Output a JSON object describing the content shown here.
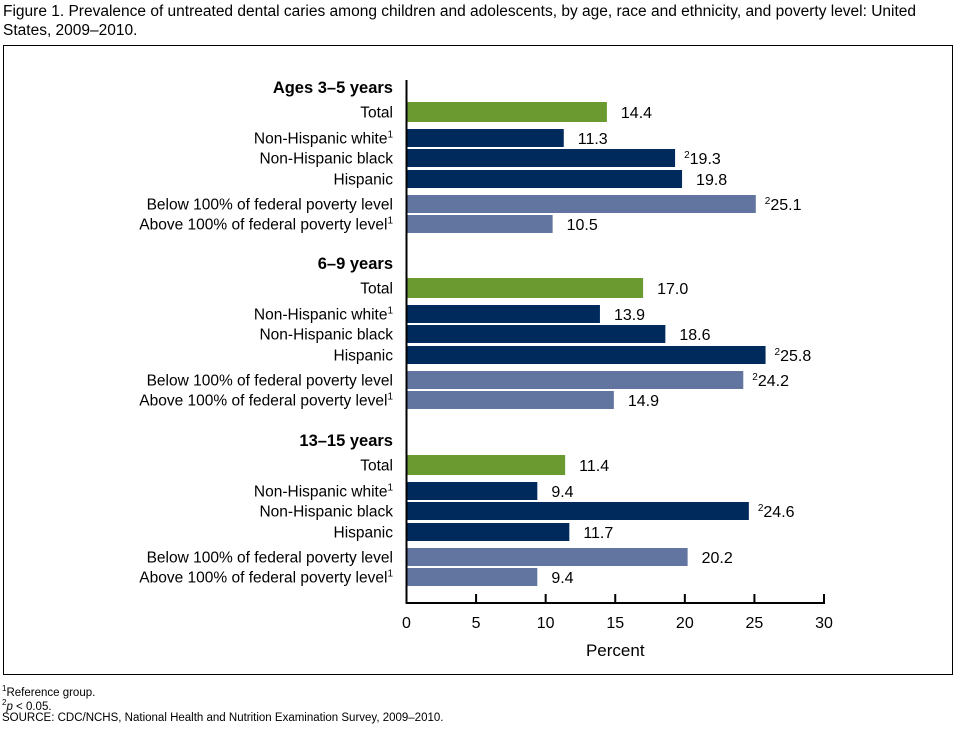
{
  "title": "Figure 1. Prevalence of untreated dental caries among children and adolescents, by age, race and ethnicity, and poverty level: United States, 2009–2010.",
  "colors": {
    "total": "#6a9a30",
    "race": "#012a5c",
    "poverty": "#6275a0"
  },
  "chart_data": {
    "type": "bar",
    "orientation": "horizontal",
    "xlabel": "Percent",
    "xlim": [
      0,
      30
    ],
    "xticks": [
      "0",
      "5",
      "10",
      "15",
      "20",
      "25",
      "30"
    ],
    "grid": false,
    "groups": [
      {
        "label": "Ages 3–5 years",
        "bars": [
          {
            "label": "Total",
            "value": 14.4,
            "value_label": "14.4",
            "kind": "total"
          },
          {
            "label": "Non-Hispanic white",
            "sup": "1",
            "value": 11.3,
            "value_label": "11.3",
            "kind": "race"
          },
          {
            "label": "Non-Hispanic black",
            "value": 19.3,
            "value_label": "19.3",
            "value_sup": "2",
            "kind": "race"
          },
          {
            "label": "Hispanic",
            "value": 19.8,
            "value_label": "19.8",
            "kind": "race"
          },
          {
            "label": "Below 100% of federal poverty level",
            "value": 25.1,
            "value_label": "25.1",
            "value_sup": "2",
            "kind": "poverty"
          },
          {
            "label": "Above 100% of federal poverty level",
            "sup": "1",
            "value": 10.5,
            "value_label": "10.5",
            "kind": "poverty"
          }
        ]
      },
      {
        "label": "6–9 years",
        "bars": [
          {
            "label": "Total",
            "value": 17.0,
            "value_label": "17.0",
            "kind": "total"
          },
          {
            "label": "Non-Hispanic white",
            "sup": "1",
            "value": 13.9,
            "value_label": "13.9",
            "kind": "race"
          },
          {
            "label": "Non-Hispanic black",
            "value": 18.6,
            "value_label": "18.6",
            "kind": "race"
          },
          {
            "label": "Hispanic",
            "value": 25.8,
            "value_label": "25.8",
            "value_sup": "2",
            "kind": "race"
          },
          {
            "label": "Below 100% of federal poverty level",
            "value": 24.2,
            "value_label": "24.2",
            "value_sup": "2",
            "kind": "poverty"
          },
          {
            "label": "Above 100% of federal poverty level",
            "sup": "1",
            "value": 14.9,
            "value_label": "14.9",
            "kind": "poverty"
          }
        ]
      },
      {
        "label": "13–15 years",
        "bars": [
          {
            "label": "Total",
            "value": 11.4,
            "value_label": "11.4",
            "kind": "total"
          },
          {
            "label": "Non-Hispanic white",
            "sup": "1",
            "value": 9.4,
            "value_label": "9.4",
            "kind": "race"
          },
          {
            "label": "Non-Hispanic black",
            "value": 24.6,
            "value_label": "24.6",
            "value_sup": "2",
            "kind": "race"
          },
          {
            "label": "Hispanic",
            "value": 11.7,
            "value_label": "11.7",
            "kind": "race"
          },
          {
            "label": "Below 100% of federal poverty level",
            "value": 20.2,
            "value_label": "20.2",
            "kind": "poverty"
          },
          {
            "label": "Above 100% of federal poverty level",
            "sup": "1",
            "value": 9.4,
            "value_label": "9.4",
            "kind": "poverty"
          }
        ]
      }
    ]
  },
  "footnotes": {
    "fn1_marker": "1",
    "fn1": "Reference group.",
    "fn2_marker": "2",
    "fn2_p": "p",
    "fn2": " < 0.05.",
    "source": "SOURCE: CDC/NCHS, National Health and Nutrition Examination Survey, 2009–2010."
  }
}
